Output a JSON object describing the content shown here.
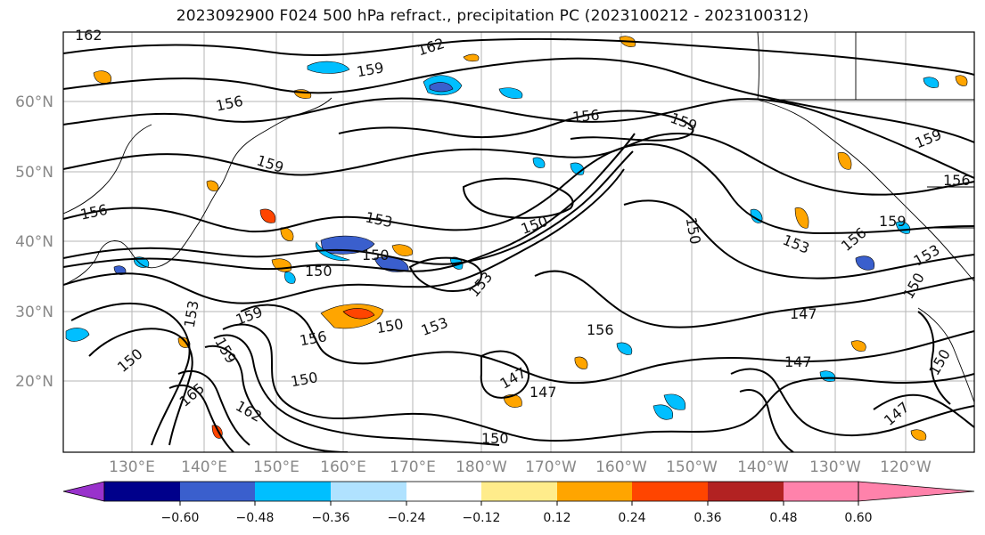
{
  "title": "2023092900 F024 500 hPa refract., precipitation PC (2023100212 - 2023100312)",
  "map": {
    "lat_labels": [
      "60°N",
      "50°N",
      "40°N",
      "30°N",
      "20°N"
    ],
    "lon_labels": [
      "130°E",
      "140°E",
      "150°E",
      "160°E",
      "170°E",
      "180°W",
      "170°W",
      "160°W",
      "150°W",
      "140°W",
      "130°W",
      "120°W"
    ],
    "contour_labels": [
      "162",
      "162",
      "159",
      "156",
      "156",
      "159",
      "159",
      "156",
      "159",
      "156",
      "153",
      "150",
      "150",
      "150",
      "153",
      "159",
      "153",
      "150",
      "156",
      "150",
      "153",
      "147",
      "156",
      "150",
      "147",
      "147",
      "147",
      "150",
      "150",
      "147",
      "165",
      "162",
      "159",
      "150",
      "153",
      "156",
      "159",
      "153",
      "150"
    ]
  },
  "colorbar": {
    "colors": [
      "#9932cc",
      "#00008b",
      "#3a5fcd",
      "#00bfff",
      "#b0e2ff",
      "#ffffff",
      "#ffec8b",
      "#ffa500",
      "#ff4500",
      "#b22222",
      "#ff82ab"
    ],
    "tick_labels": [
      "−0.60",
      "−0.48",
      "−0.36",
      "−0.24",
      "−0.12",
      "0.12",
      "0.24",
      "0.36",
      "0.48",
      "0.60"
    ]
  }
}
